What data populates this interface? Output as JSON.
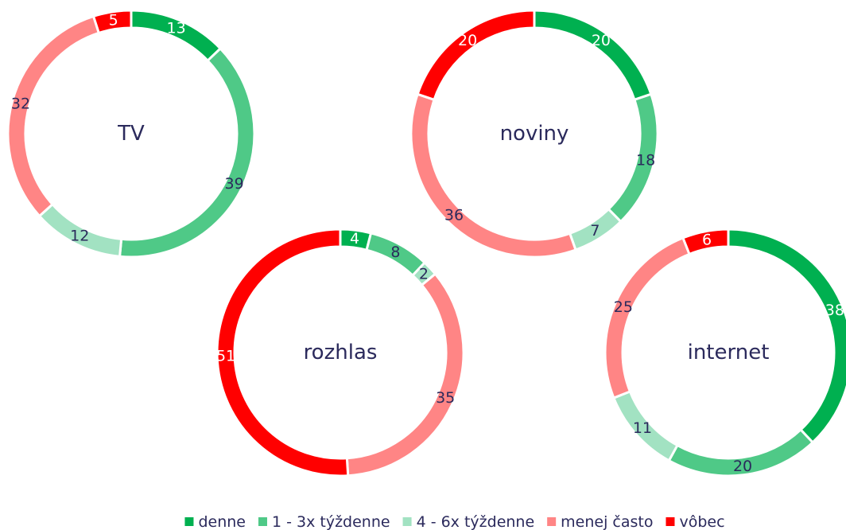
{
  "chart_data": [
    {
      "type": "donut",
      "title": "TV",
      "categories": [
        "denne",
        "1 - 3x týždenne",
        "4 - 6x týždenne",
        "menej často",
        "vôbec"
      ],
      "values": [
        13,
        39,
        12,
        32,
        5
      ],
      "colors": [
        "#00b050",
        "#4fc987",
        "#a2e2c2",
        "#ff8585",
        "#ff0000"
      ]
    },
    {
      "type": "donut",
      "title": "noviny",
      "categories": [
        "denne",
        "1 - 3x týždenne",
        "4 - 6x týždenne",
        "menej často",
        "vôbec"
      ],
      "values": [
        20,
        18,
        7,
        36,
        20
      ],
      "colors": [
        "#00b050",
        "#4fc987",
        "#a2e2c2",
        "#ff8585",
        "#ff0000"
      ]
    },
    {
      "type": "donut",
      "title": "rozhlas",
      "categories": [
        "denne",
        "1 - 3x týždenne",
        "4 - 6x týždenne",
        "menej často",
        "vôbec"
      ],
      "values": [
        4,
        8,
        2,
        35,
        51
      ],
      "colors": [
        "#00b050",
        "#4fc987",
        "#a2e2c2",
        "#ff8585",
        "#ff0000"
      ]
    },
    {
      "type": "donut",
      "title": "internet",
      "categories": [
        "denne",
        "1 - 3x týždenne",
        "4 - 6x týždenne",
        "menej často",
        "vôbec"
      ],
      "values": [
        38,
        20,
        11,
        25,
        6
      ],
      "colors": [
        "#00b050",
        "#4fc987",
        "#a2e2c2",
        "#ff8585",
        "#ff0000"
      ]
    }
  ]
}
